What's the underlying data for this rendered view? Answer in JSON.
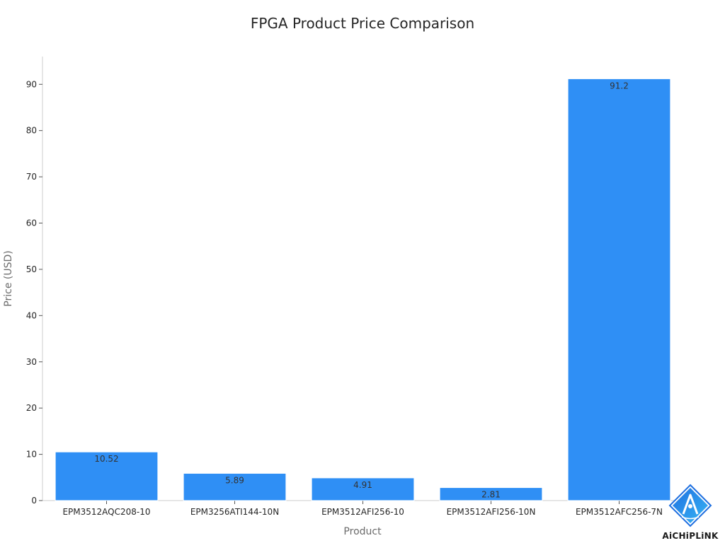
{
  "chart_data": {
    "type": "bar",
    "title": "FPGA Product Price Comparison",
    "xlabel": "Product",
    "ylabel": "Price (USD)",
    "categories": [
      "EPM3512AQC208-10",
      "EPM3256ATI144-10N",
      "EPM3512AFI256-10",
      "EPM3512AFI256-10N",
      "EPM3512AFC256-7N"
    ],
    "values": [
      10.52,
      5.89,
      4.91,
      2.81,
      91.2
    ],
    "data_labels": [
      "10.52",
      "5.89",
      "4.91",
      "2.81",
      "91.2"
    ],
    "ylim": [
      0,
      96
    ],
    "yticks": [
      0,
      10,
      20,
      30,
      40,
      50,
      60,
      70,
      80,
      90
    ],
    "grid": false,
    "legend": "none",
    "bar_color": "#2f8ff5"
  },
  "brand": {
    "name": "AiCHiPLiNK",
    "logo_icon": "aichiplink-logo-icon",
    "logo_colors": [
      "#1e6fe0",
      "#38b6f5"
    ]
  }
}
